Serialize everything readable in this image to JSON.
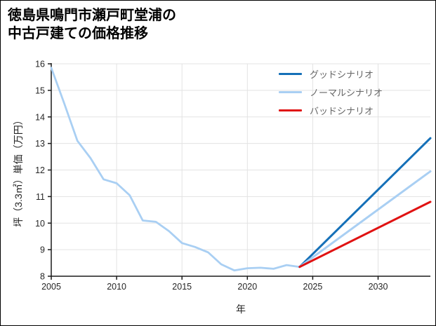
{
  "header": {
    "title_lines": [
      "徳島県鳴門市瀬戸町堂浦の",
      "中古戸建ての価格推移"
    ]
  },
  "chart_data": {
    "type": "line",
    "title": "徳島県鳴門市瀬戸町堂浦の中古戸建ての価格推移",
    "xlabel": "年",
    "ylabel": "坪（3.3㎡）単価（万円）",
    "xlim": [
      2005,
      2034
    ],
    "ylim": [
      8,
      16
    ],
    "xticks": [
      2005,
      2010,
      2015,
      2020,
      2025,
      2030
    ],
    "yticks": [
      8,
      9,
      10,
      11,
      12,
      13,
      14,
      15,
      16
    ],
    "grid": true,
    "grid_color": "#e3e3e3",
    "axis_color": "#1a1a1a",
    "legend_position": "upper-right",
    "series": [
      {
        "name": "",
        "color": "#a9cff3",
        "width": 2.8,
        "x": [
          2005,
          2006,
          2007,
          2008,
          2009,
          2010,
          2011,
          2012,
          2013,
          2014,
          2015,
          2016,
          2017,
          2018,
          2019,
          2020,
          2021,
          2022,
          2023,
          2024
        ],
        "y": [
          15.85,
          14.5,
          13.1,
          12.45,
          11.65,
          11.5,
          11.05,
          10.1,
          10.05,
          9.7,
          9.25,
          9.1,
          8.9,
          8.45,
          8.22,
          8.3,
          8.32,
          8.28,
          8.42,
          8.35
        ]
      },
      {
        "name": "グッドシナリオ",
        "color": "#1570b8",
        "width": 3,
        "x": [
          2024,
          2034
        ],
        "y": [
          8.35,
          13.2
        ]
      },
      {
        "name": "ノーマルシナリオ",
        "color": "#a9cff3",
        "width": 3,
        "x": [
          2024,
          2034
        ],
        "y": [
          8.35,
          11.95
        ]
      },
      {
        "name": "バッドシナリオ",
        "color": "#e01212",
        "width": 3,
        "x": [
          2024,
          2034
        ],
        "y": [
          8.35,
          10.8
        ]
      }
    ]
  }
}
